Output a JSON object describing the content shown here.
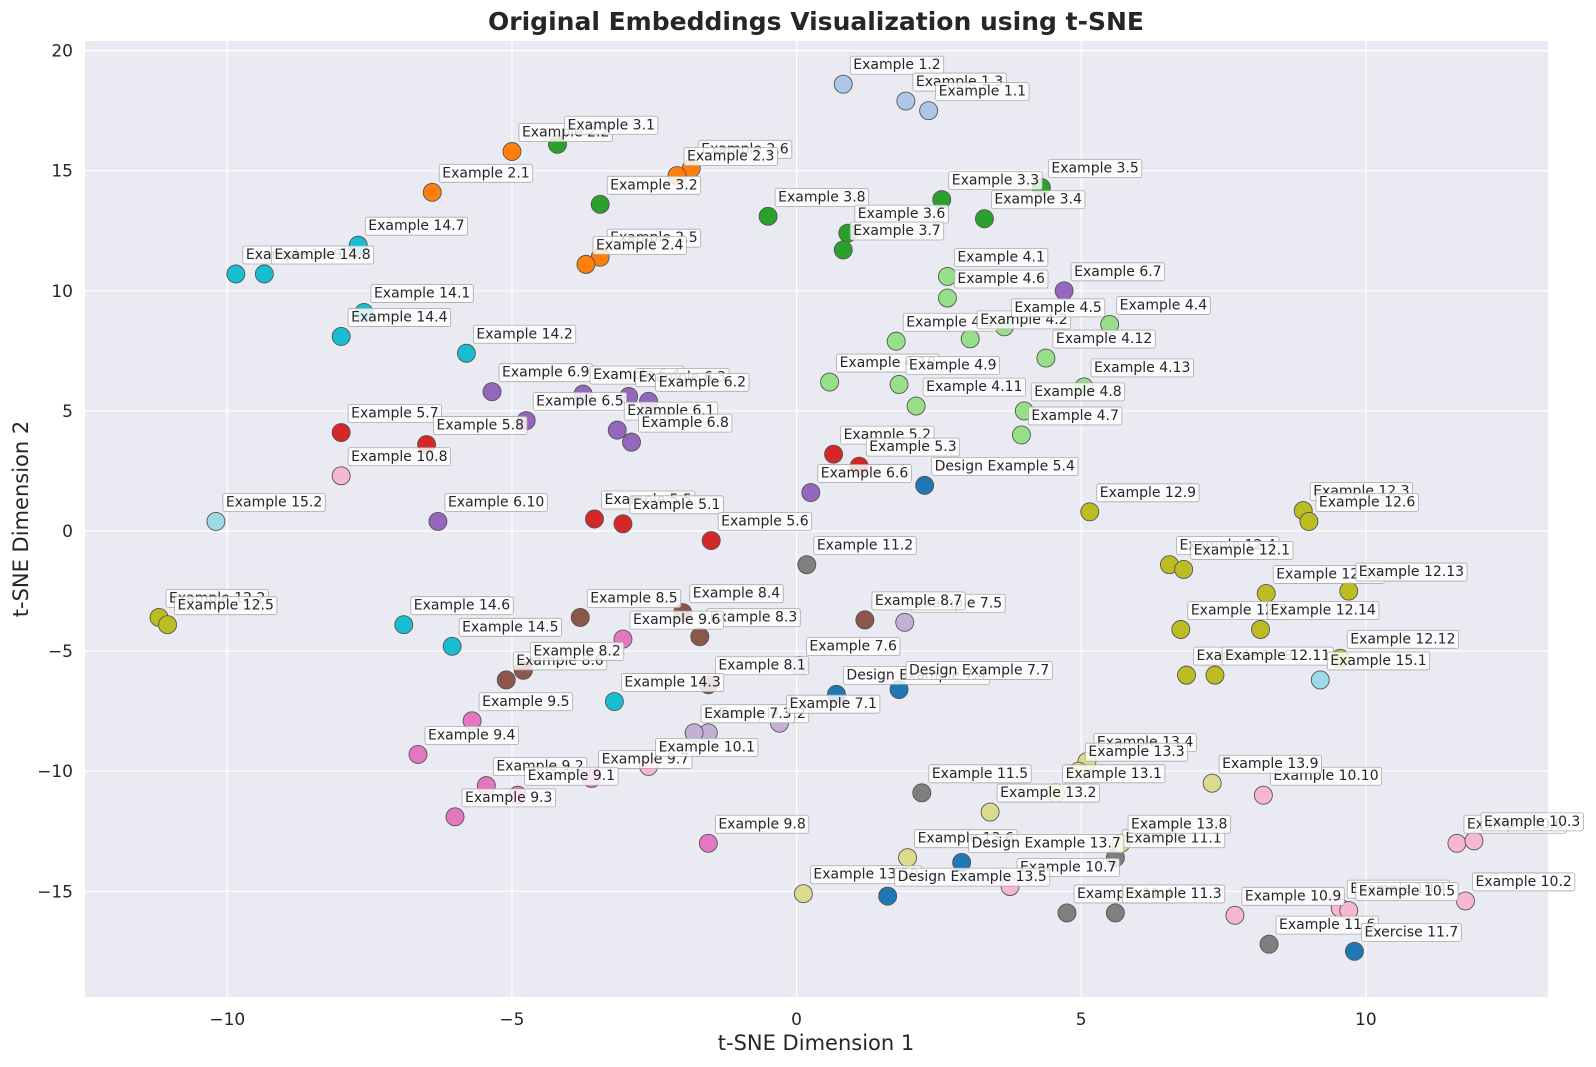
{
  "chart_data": {
    "type": "scatter",
    "title": "Original Embeddings Visualization using t-SNE",
    "xlabel": "t-SNE Dimension 1",
    "ylabel": "t-SNE Dimension 2",
    "xlim": [
      -12.5,
      13.2
    ],
    "ylim": [
      -19.4,
      20.4
    ],
    "xticks": [
      -10,
      -5,
      0,
      5,
      10
    ],
    "yticks": [
      -15,
      -10,
      -5,
      0,
      5,
      10,
      15,
      20
    ],
    "xtick_labels": [
      "−10",
      "−5",
      "0",
      "5",
      "10"
    ],
    "ytick_labels": [
      "−15",
      "−10",
      "−5",
      "0",
      "5",
      "10",
      "15",
      "20"
    ],
    "grid": true,
    "colors": {
      "background": "#eaeaf2",
      "grid": "#ffffff",
      "marker_edge": "#555555",
      "label_box": "#ffffff",
      "label_border": "#aaaaaa"
    },
    "groups": {
      "g1": "#aec7e8",
      "g2": "#ff7f0e",
      "g3": "#2ca02c",
      "g4": "#98df8a",
      "g5": "#d62728",
      "g6": "#9467bd",
      "g7": "#c5b0d5",
      "g8": "#8c564b",
      "g9": "#e377c2",
      "g10": "#f7b6d2",
      "g11": "#7f7f7f",
      "g12": "#bcbd22",
      "g13": "#dbdb8d",
      "g14": "#17becf",
      "g15": "#9edae5",
      "design": "#1f77b4"
    },
    "points": [
      {
        "label": "Example 1.2",
        "x": 0.82,
        "y": 18.6,
        "g": "g1"
      },
      {
        "label": "Example 1.3",
        "x": 1.92,
        "y": 17.9,
        "g": "g1"
      },
      {
        "label": "Example 1.1",
        "x": 2.32,
        "y": 17.5,
        "g": "g1"
      },
      {
        "label": "Example 2.1",
        "x": -6.4,
        "y": 14.1,
        "g": "g2"
      },
      {
        "label": "Example 2.2",
        "x": -5.0,
        "y": 15.8,
        "g": "g2"
      },
      {
        "label": "Example 2.6",
        "x": -1.85,
        "y": 15.1,
        "g": "g2"
      },
      {
        "label": "Example 2.3",
        "x": -2.1,
        "y": 14.8,
        "g": "g2"
      },
      {
        "label": "Example 2.5",
        "x": -3.45,
        "y": 11.4,
        "g": "g2"
      },
      {
        "label": "Example 2.4",
        "x": -3.7,
        "y": 11.1,
        "g": "g2"
      },
      {
        "label": "Example 3.1",
        "x": -4.2,
        "y": 16.1,
        "g": "g3"
      },
      {
        "label": "Example 3.2",
        "x": -3.45,
        "y": 13.6,
        "g": "g3"
      },
      {
        "label": "Example 3.8",
        "x": -0.5,
        "y": 13.1,
        "g": "g3"
      },
      {
        "label": "Example 3.3",
        "x": 2.55,
        "y": 13.8,
        "g": "g3"
      },
      {
        "label": "Example 3.5",
        "x": 4.3,
        "y": 14.3,
        "g": "g3"
      },
      {
        "label": "Example 3.4",
        "x": 3.3,
        "y": 13.0,
        "g": "g3"
      },
      {
        "label": "Example 3.6",
        "x": 0.9,
        "y": 12.4,
        "g": "g3"
      },
      {
        "label": "Example 3.7",
        "x": 0.82,
        "y": 11.7,
        "g": "g3"
      },
      {
        "label": "Example 4.1",
        "x": 2.65,
        "y": 10.6,
        "g": "g4"
      },
      {
        "label": "Example 4.6",
        "x": 2.65,
        "y": 9.7,
        "g": "g4"
      },
      {
        "label": "Example 4.3",
        "x": 1.75,
        "y": 7.9,
        "g": "g4"
      },
      {
        "label": "Example 4.2",
        "x": 3.05,
        "y": 8.0,
        "g": "g4"
      },
      {
        "label": "Example 4.5",
        "x": 3.65,
        "y": 8.5,
        "g": "g4"
      },
      {
        "label": "Example 4.4",
        "x": 5.5,
        "y": 8.6,
        "g": "g4"
      },
      {
        "label": "Example 4.12",
        "x": 4.38,
        "y": 7.2,
        "g": "g4"
      },
      {
        "label": "Example 4.10",
        "x": 0.58,
        "y": 6.2,
        "g": "g4"
      },
      {
        "label": "Example 4.9",
        "x": 1.8,
        "y": 6.1,
        "g": "g4"
      },
      {
        "label": "Example 4.11",
        "x": 2.1,
        "y": 5.2,
        "g": "g4"
      },
      {
        "label": "Example 4.13",
        "x": 5.05,
        "y": 6.0,
        "g": "g4"
      },
      {
        "label": "Example 4.8",
        "x": 4.0,
        "y": 5.0,
        "g": "g4"
      },
      {
        "label": "Example 4.7",
        "x": 3.95,
        "y": 4.0,
        "g": "g4"
      },
      {
        "label": "Example 5.7",
        "x": -8.0,
        "y": 4.1,
        "g": "g5"
      },
      {
        "label": "Example 5.8",
        "x": -6.5,
        "y": 3.6,
        "g": "g5"
      },
      {
        "label": "Example 5.2",
        "x": 0.65,
        "y": 3.2,
        "g": "g5"
      },
      {
        "label": "Example 5.3",
        "x": 1.1,
        "y": 2.7,
        "g": "g5"
      },
      {
        "label": "Example 5.5",
        "x": -3.55,
        "y": 0.5,
        "g": "g5"
      },
      {
        "label": "Example 5.1",
        "x": -3.05,
        "y": 0.3,
        "g": "g5"
      },
      {
        "label": "Example 5.6",
        "x": -1.5,
        "y": -0.4,
        "g": "g5"
      },
      {
        "label": "Example 6.7",
        "x": 4.7,
        "y": 10.0,
        "g": "g6"
      },
      {
        "label": "Example 6.9",
        "x": -5.35,
        "y": 5.8,
        "g": "g6"
      },
      {
        "label": "Example 6.4",
        "x": -3.75,
        "y": 5.7,
        "g": "g6"
      },
      {
        "label": "Example 6.3",
        "x": -2.95,
        "y": 5.6,
        "g": "g6"
      },
      {
        "label": "Example 6.2",
        "x": -2.6,
        "y": 5.4,
        "g": "g6"
      },
      {
        "label": "Example 6.5",
        "x": -4.75,
        "y": 4.6,
        "g": "g6"
      },
      {
        "label": "Example 6.1",
        "x": -3.15,
        "y": 4.2,
        "g": "g6"
      },
      {
        "label": "Example 6.8",
        "x": -2.9,
        "y": 3.7,
        "g": "g6"
      },
      {
        "label": "Example 6.6",
        "x": 0.25,
        "y": 1.6,
        "g": "g6"
      },
      {
        "label": "Example 6.10",
        "x": -6.3,
        "y": 0.4,
        "g": "g6"
      },
      {
        "label": "Example 7.5",
        "x": 1.9,
        "y": -3.8,
        "g": "g7"
      },
      {
        "label": "Example 7.6",
        "x": 0.05,
        "y": -5.6,
        "g": "g7"
      },
      {
        "label": "Example 7.2",
        "x": -1.55,
        "y": -8.4,
        "g": "g7"
      },
      {
        "label": "Example 7.3",
        "x": -1.8,
        "y": -8.4,
        "g": "g7"
      },
      {
        "label": "Example 7.1",
        "x": -0.3,
        "y": -8.0,
        "g": "g7"
      },
      {
        "label": "Example 8.5",
        "x": -3.8,
        "y": -3.6,
        "g": "g8"
      },
      {
        "label": "Example 8.4",
        "x": -2.0,
        "y": -3.4,
        "g": "g8"
      },
      {
        "label": "Example 8.7",
        "x": 1.2,
        "y": -3.7,
        "g": "g8"
      },
      {
        "label": "Example 8.3",
        "x": -1.7,
        "y": -4.4,
        "g": "g8"
      },
      {
        "label": "Example 8.6",
        "x": -5.1,
        "y": -6.2,
        "g": "g8"
      },
      {
        "label": "Example 8.2",
        "x": -4.8,
        "y": -5.8,
        "g": "g8"
      },
      {
        "label": "Example 8.1",
        "x": -1.55,
        "y": -6.4,
        "g": "g8"
      },
      {
        "label": "Example 9.6",
        "x": -3.05,
        "y": -4.5,
        "g": "g9"
      },
      {
        "label": "Example 9.5",
        "x": -5.7,
        "y": -7.9,
        "g": "g9"
      },
      {
        "label": "Example 9.4",
        "x": -6.65,
        "y": -9.3,
        "g": "g9"
      },
      {
        "label": "Example 9.7",
        "x": -3.6,
        "y": -10.3,
        "g": "g9"
      },
      {
        "label": "Example 9.2",
        "x": -5.45,
        "y": -10.6,
        "g": "g9"
      },
      {
        "label": "Example 9.1",
        "x": -4.9,
        "y": -11.0,
        "g": "g9"
      },
      {
        "label": "Example 9.3",
        "x": -6.0,
        "y": -11.9,
        "g": "g9"
      },
      {
        "label": "Example 9.8",
        "x": -1.55,
        "y": -13.0,
        "g": "g9"
      },
      {
        "label": "Example 10.8",
        "x": -8.0,
        "y": 2.3,
        "g": "g10"
      },
      {
        "label": "Example 10.1",
        "x": -2.6,
        "y": -9.8,
        "g": "g10"
      },
      {
        "label": "Example 10.7",
        "x": 3.75,
        "y": -14.8,
        "g": "g10"
      },
      {
        "label": "Example 10.10",
        "x": 8.2,
        "y": -11.0,
        "g": "g10"
      },
      {
        "label": "Example 10.9",
        "x": 7.7,
        "y": -16.0,
        "g": "g10"
      },
      {
        "label": "Example 10.4",
        "x": 9.55,
        "y": -15.7,
        "g": "g10"
      },
      {
        "label": "Example 10.5",
        "x": 9.7,
        "y": -15.8,
        "g": "g10"
      },
      {
        "label": "Example 10.2",
        "x": 11.75,
        "y": -15.4,
        "g": "g10"
      },
      {
        "label": "Example 10.6",
        "x": 11.6,
        "y": -13.0,
        "g": "g10"
      },
      {
        "label": "Example 10.3",
        "x": 11.9,
        "y": -12.9,
        "g": "g10"
      },
      {
        "label": "Example 11.2",
        "x": 0.18,
        "y": -1.4,
        "g": "g11"
      },
      {
        "label": "Example 11.5",
        "x": 2.2,
        "y": -10.9,
        "g": "g11"
      },
      {
        "label": "Example 11.1",
        "x": 5.6,
        "y": -13.6,
        "g": "g11"
      },
      {
        "label": "Example 11.4",
        "x": 4.75,
        "y": -15.9,
        "g": "g11"
      },
      {
        "label": "Example 11.3",
        "x": 5.6,
        "y": -15.9,
        "g": "g11"
      },
      {
        "label": "Example 11.6",
        "x": 8.3,
        "y": -17.2,
        "g": "g11"
      },
      {
        "label": "Example 12.9",
        "x": 5.15,
        "y": 0.8,
        "g": "g12"
      },
      {
        "label": "Example 12.3",
        "x": 8.9,
        "y": 0.85,
        "g": "g12"
      },
      {
        "label": "Example 12.6",
        "x": 9.0,
        "y": 0.4,
        "g": "g12"
      },
      {
        "label": "Example 12.4",
        "x": 6.55,
        "y": -1.4,
        "g": "g12"
      },
      {
        "label": "Example 12.1",
        "x": 6.8,
        "y": -1.6,
        "g": "g12"
      },
      {
        "label": "Example 12.10",
        "x": 8.25,
        "y": -2.6,
        "g": "g12"
      },
      {
        "label": "Example 12.13",
        "x": 9.7,
        "y": -2.5,
        "g": "g12"
      },
      {
        "label": "Example 12.7",
        "x": 6.75,
        "y": -4.1,
        "g": "g12"
      },
      {
        "label": "Example 12.14",
        "x": 8.15,
        "y": -4.1,
        "g": "g12"
      },
      {
        "label": "Example 12.12",
        "x": 9.55,
        "y": -5.3,
        "g": "g12"
      },
      {
        "label": "Example 12.8",
        "x": 6.85,
        "y": -6.0,
        "g": "g12"
      },
      {
        "label": "Example 12.11",
        "x": 7.35,
        "y": -6.0,
        "g": "g12"
      },
      {
        "label": "Example 12.2",
        "x": -11.2,
        "y": -3.6,
        "g": "g12"
      },
      {
        "label": "Example 12.5",
        "x": -11.05,
        "y": -3.9,
        "g": "g12"
      },
      {
        "label": "Example 13.4",
        "x": 5.1,
        "y": -9.6,
        "g": "g13"
      },
      {
        "label": "Example 13.3",
        "x": 4.95,
        "y": -10.0,
        "g": "g13"
      },
      {
        "label": "Example 13.1",
        "x": 4.55,
        "y": -10.9,
        "g": "g13"
      },
      {
        "label": "Example 13.2",
        "x": 3.4,
        "y": -11.7,
        "g": "g13"
      },
      {
        "label": "Example 13.9",
        "x": 7.3,
        "y": -10.5,
        "g": "g13"
      },
      {
        "label": "Example 13.8",
        "x": 5.7,
        "y": -13.0,
        "g": "g13"
      },
      {
        "label": "Example 13.6",
        "x": 1.95,
        "y": -13.6,
        "g": "g13"
      },
      {
        "label": "Example 13.10",
        "x": 0.12,
        "y": -15.1,
        "g": "g13"
      },
      {
        "label": "Example 14.7",
        "x": -7.7,
        "y": 11.9,
        "g": "g14"
      },
      {
        "label": "Example 14.9",
        "x": -9.85,
        "y": 10.7,
        "g": "g14"
      },
      {
        "label": "Example 14.8",
        "x": -9.35,
        "y": 10.7,
        "g": "g14"
      },
      {
        "label": "Example 14.1",
        "x": -7.6,
        "y": 9.1,
        "g": "g14"
      },
      {
        "label": "Example 14.4",
        "x": -8.0,
        "y": 8.1,
        "g": "g14"
      },
      {
        "label": "Example 14.2",
        "x": -5.8,
        "y": 7.4,
        "g": "g14"
      },
      {
        "label": "Example 14.6",
        "x": -6.9,
        "y": -3.9,
        "g": "g14"
      },
      {
        "label": "Example 14.5",
        "x": -6.05,
        "y": -4.8,
        "g": "g14"
      },
      {
        "label": "Example 14.3",
        "x": -3.2,
        "y": -7.1,
        "g": "g14"
      },
      {
        "label": "Example 15.2",
        "x": -10.2,
        "y": 0.4,
        "g": "g15"
      },
      {
        "label": "Example 15.1",
        "x": 9.2,
        "y": -6.2,
        "g": "g15"
      },
      {
        "label": "Design Example 5.4",
        "x": 2.25,
        "y": 1.9,
        "g": "design"
      },
      {
        "label": "Design Example 7.4",
        "x": 0.7,
        "y": -6.8,
        "g": "design"
      },
      {
        "label": "Design Example 7.7",
        "x": 1.8,
        "y": -6.6,
        "g": "design"
      },
      {
        "label": "Design Example 13.7",
        "x": 2.9,
        "y": -13.8,
        "g": "design"
      },
      {
        "label": "Design Example 13.5",
        "x": 1.6,
        "y": -15.2,
        "g": "design"
      },
      {
        "label": "Exercise 11.7",
        "x": 9.8,
        "y": -17.5,
        "g": "design"
      }
    ]
  }
}
